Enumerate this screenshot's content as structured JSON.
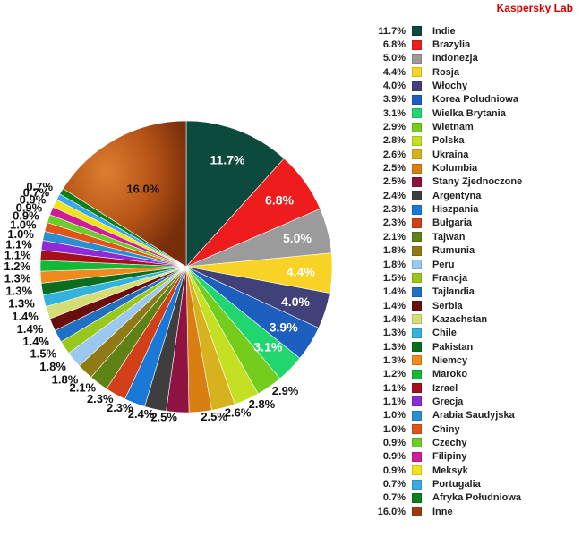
{
  "brand": "Kaspersky Lab",
  "chart_data": {
    "type": "pie",
    "title": "",
    "legend_position": "right",
    "series": [
      {
        "label": "Indie",
        "value": 11.7,
        "display": "11.7%",
        "color": "#0b4a3c"
      },
      {
        "label": "Brazylia",
        "value": 6.8,
        "display": "6.8%",
        "color": "#ee1c1c"
      },
      {
        "label": "Indonezja",
        "value": 5.0,
        "display": "5.0%",
        "color": "#9b9b9b"
      },
      {
        "label": "Rosja",
        "value": 4.4,
        "display": "4.4%",
        "color": "#f8d325"
      },
      {
        "label": "Włochy",
        "value": 4.0,
        "display": "4.0%",
        "color": "#41417a"
      },
      {
        "label": "Korea Południowa",
        "value": 3.9,
        "display": "3.9%",
        "color": "#1d5fbf"
      },
      {
        "label": "Wielka Brytania",
        "value": 3.1,
        "display": "3.1%",
        "color": "#22d66f"
      },
      {
        "label": "Wietnam",
        "value": 2.9,
        "display": "2.9%",
        "color": "#74cc1c"
      },
      {
        "label": "Polska",
        "value": 2.8,
        "display": "2.8%",
        "color": "#c5df22"
      },
      {
        "label": "Ukraina",
        "value": 2.6,
        "display": "2.6%",
        "color": "#d8b21e"
      },
      {
        "label": "Kolumbia",
        "value": 2.5,
        "display": "2.5%",
        "color": "#d97f12"
      },
      {
        "label": "Stany Zjednoczone",
        "value": 2.5,
        "display": "2.5%",
        "color": "#8e1340"
      },
      {
        "label": "Argentyna",
        "value": 2.4,
        "display": "2.4%",
        "color": "#3e3e3e"
      },
      {
        "label": "Hiszpania",
        "value": 2.3,
        "display": "2.3%",
        "color": "#1a78d6"
      },
      {
        "label": "Bułgaria",
        "value": 2.3,
        "display": "2.3%",
        "color": "#d2401a"
      },
      {
        "label": "Tajwan",
        "value": 2.1,
        "display": "2.1%",
        "color": "#5f8214"
      },
      {
        "label": "Rumunia",
        "value": 1.8,
        "display": "1.8%",
        "color": "#8f7a16"
      },
      {
        "label": "Peru",
        "value": 1.8,
        "display": "1.8%",
        "color": "#9cc8ef"
      },
      {
        "label": "Francja",
        "value": 1.5,
        "display": "1.5%",
        "color": "#9ac81a"
      },
      {
        "label": "Tajlandia",
        "value": 1.4,
        "display": "1.4%",
        "color": "#1f6fc4"
      },
      {
        "label": "Serbia",
        "value": 1.4,
        "display": "1.4%",
        "color": "#6a0d0d"
      },
      {
        "label": "Kazachstan",
        "value": 1.4,
        "display": "1.4%",
        "color": "#d6dd74"
      },
      {
        "label": "Chile",
        "value": 1.3,
        "display": "1.3%",
        "color": "#33b2de"
      },
      {
        "label": "Pakistan",
        "value": 1.3,
        "display": "1.3%",
        "color": "#0a6e1e"
      },
      {
        "label": "Niemcy",
        "value": 1.3,
        "display": "1.3%",
        "color": "#ef8a1e"
      },
      {
        "label": "Maroko",
        "value": 1.2,
        "display": "1.2%",
        "color": "#13b836"
      },
      {
        "label": "Izrael",
        "value": 1.1,
        "display": "1.1%",
        "color": "#a40f1a"
      },
      {
        "label": "Grecja",
        "value": 1.1,
        "display": "1.1%",
        "color": "#8e2ad6"
      },
      {
        "label": "Arabia Saudyjska",
        "value": 1.0,
        "display": "1.0%",
        "color": "#2a8fd0"
      },
      {
        "label": "Chiny",
        "value": 1.0,
        "display": "1.0%",
        "color": "#e05418"
      },
      {
        "label": "Czechy",
        "value": 0.9,
        "display": "0.9%",
        "color": "#6ccc2a"
      },
      {
        "label": "Filipiny",
        "value": 0.9,
        "display": "0.9%",
        "color": "#cf1d9a"
      },
      {
        "label": "Meksyk",
        "value": 0.9,
        "display": "0.9%",
        "color": "#f2e21a"
      },
      {
        "label": "Portugalia",
        "value": 0.7,
        "display": "0.7%",
        "color": "#3aa9ea"
      },
      {
        "label": "Afryka Południowa",
        "value": 0.7,
        "display": "0.7%",
        "color": "#0e7d1c"
      },
      {
        "label": "Inne",
        "value": 16.0,
        "display": "16.0%",
        "color": "#9a3a10"
      }
    ]
  }
}
